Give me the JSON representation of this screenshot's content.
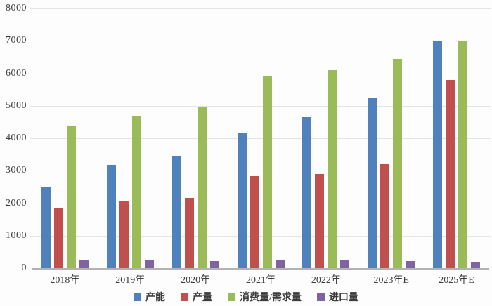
{
  "chart_data": {
    "type": "bar",
    "title": "",
    "categories": [
      "2018年",
      "2019年",
      "2020年",
      "2021年",
      "2022年",
      "2023年E",
      "2025年E"
    ],
    "series": [
      {
        "key": "capacity",
        "name": "产能",
        "color": "#4F81BD",
        "values": [
          2500,
          3170,
          3470,
          4180,
          4670,
          5250,
          7000
        ]
      },
      {
        "key": "output",
        "name": "产量",
        "color": "#C0504D",
        "values": [
          1850,
          2050,
          2170,
          2830,
          2900,
          3200,
          5800
        ]
      },
      {
        "key": "consumption",
        "name": "消费量/需求量",
        "color": "#9BBB59",
        "values": [
          4400,
          4700,
          4950,
          5900,
          6100,
          6450,
          7000
        ]
      },
      {
        "key": "imports",
        "name": "进口量",
        "color": "#8064A2",
        "values": [
          270,
          260,
          220,
          230,
          230,
          220,
          170
        ]
      }
    ],
    "ylim": [
      0,
      8000
    ],
    "ytick_step": 1000,
    "yticks": [
      0,
      1000,
      2000,
      3000,
      4000,
      5000,
      6000,
      7000,
      8000
    ],
    "grid": true,
    "legend_position": "bottom",
    "axis_text_color": "#3d3d3d",
    "gridline_color": "#e4e4e4"
  }
}
